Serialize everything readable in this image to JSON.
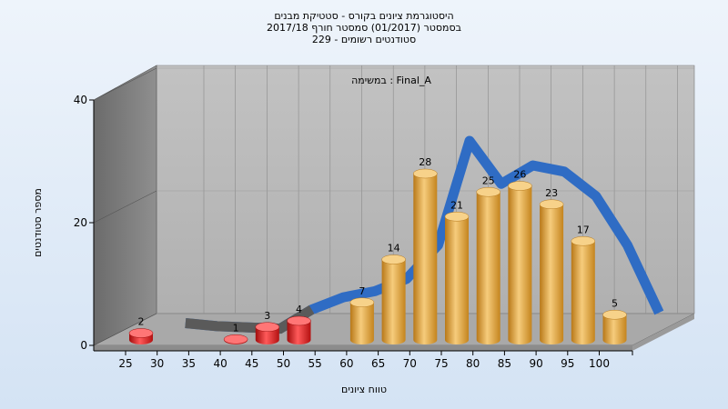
{
  "chart_data": {
    "type": "bar",
    "title_lines": [
      "היסטוגרמת ציונים בקורס - סטטיקת מבנים",
      "בסמסטר  (01/2017)  סמסטר חורף 2017/18",
      "סטודנטים רשומים - 229"
    ],
    "subtitle": "במשימה : Final_A",
    "xlabel": "טווח ציונים",
    "ylabel": "מספר סטודנטים",
    "ylim": [
      0,
      40
    ],
    "yticks": [
      0,
      20,
      40
    ],
    "xtick_labels": [
      "25",
      "30",
      "35",
      "40",
      "45",
      "50",
      "55",
      "60",
      "65",
      "70",
      "75",
      "80",
      "85",
      "90",
      "95",
      "100"
    ],
    "bars": [
      {
        "x": 25,
        "value": 2,
        "group": "fail"
      },
      {
        "x": 40,
        "value": 1,
        "group": "fail"
      },
      {
        "x": 45,
        "value": 3,
        "group": "fail"
      },
      {
        "x": 50,
        "value": 4,
        "group": "fail"
      },
      {
        "x": 60,
        "value": 7,
        "group": "pass"
      },
      {
        "x": 65,
        "value": 14,
        "group": "pass"
      },
      {
        "x": 70,
        "value": 28,
        "group": "pass"
      },
      {
        "x": 75,
        "value": 21,
        "group": "pass"
      },
      {
        "x": 80,
        "value": 25,
        "group": "pass"
      },
      {
        "x": 85,
        "value": 26,
        "group": "pass"
      },
      {
        "x": 90,
        "value": 23,
        "group": "pass"
      },
      {
        "x": 95,
        "value": 17,
        "group": "pass"
      },
      {
        "x": 100,
        "value": 5,
        "group": "pass"
      }
    ],
    "curve": [
      {
        "x": 30,
        "y": 1.3
      },
      {
        "x": 35,
        "y": 0.8
      },
      {
        "x": 40,
        "y": 0.6
      },
      {
        "x": 45,
        "y": 0.4
      },
      {
        "x": 50,
        "y": 3.5
      },
      {
        "x": 55,
        "y": 5.5
      },
      {
        "x": 60,
        "y": 6.5
      },
      {
        "x": 65,
        "y": 8.5
      },
      {
        "x": 70,
        "y": 14
      },
      {
        "x": 75,
        "y": 31
      },
      {
        "x": 80,
        "y": 24
      },
      {
        "x": 85,
        "y": 27
      },
      {
        "x": 90,
        "y": 26
      },
      {
        "x": 95,
        "y": 22
      },
      {
        "x": 100,
        "y": 14
      },
      {
        "x": 105,
        "y": 3
      }
    ],
    "colors": {
      "fail": "#e21b1b",
      "pass": "#e8a746",
      "curve": "#2f6cc4",
      "curve_low": "#5a5a5a"
    },
    "grid": true
  }
}
